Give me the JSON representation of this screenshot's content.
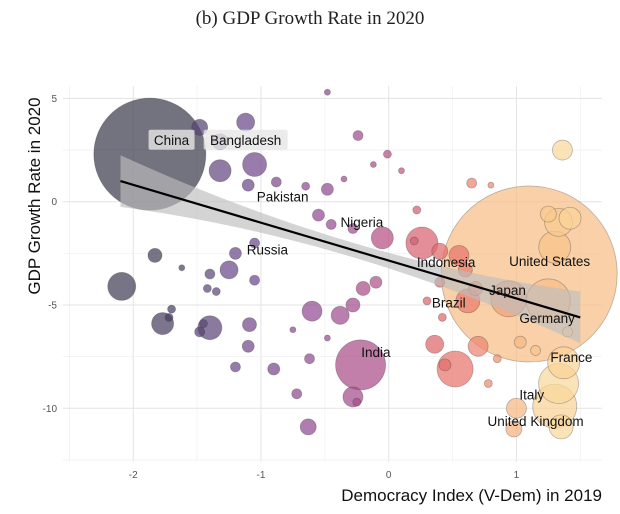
{
  "chart_data": {
    "type": "scatter",
    "title": "(b) GDP Growth Rate in 2020",
    "xlabel": "Democracy Index (V-Dem) in 2019",
    "ylabel": "GDP Growth Rate in 2020",
    "xlim": [
      -2.55,
      1.67
    ],
    "ylim": [
      -12.6,
      5.6
    ],
    "x_ticks": [
      -2,
      -1,
      0,
      1
    ],
    "y_ticks": [
      5,
      0,
      -5,
      -10
    ],
    "grid": true,
    "bubble_color_scale": [
      "#3d3c4e",
      "#6b4a8a",
      "#9b4b92",
      "#c2547a",
      "#e46a6a",
      "#f29e74",
      "#f8c98c",
      "#fbeab0"
    ],
    "regression_line": {
      "x": [
        -2.1,
        1.5
      ],
      "y": [
        1.0,
        -5.6
      ],
      "color": "#000000",
      "band_color": "#bdbdbd"
    },
    "labels": [
      {
        "text": "China",
        "x": -1.7,
        "y": 2.95,
        "boxed": true
      },
      {
        "text": "Bangladesh",
        "x": -1.12,
        "y": 2.95,
        "boxed": true
      },
      {
        "text": "Pakistan",
        "x": -0.83,
        "y": 0.22,
        "boxed": false
      },
      {
        "text": "Nigeria",
        "x": -0.21,
        "y": -1.0,
        "boxed": false
      },
      {
        "text": "Russia",
        "x": -0.95,
        "y": -2.35,
        "boxed": false
      },
      {
        "text": "Indonesia",
        "x": 0.45,
        "y": -2.95,
        "boxed": false
      },
      {
        "text": "United States",
        "x": 1.26,
        "y": -2.9,
        "boxed": false
      },
      {
        "text": "Japan",
        "x": 0.93,
        "y": -4.3,
        "boxed": false
      },
      {
        "text": "Brazil",
        "x": 0.47,
        "y": -4.9,
        "boxed": false
      },
      {
        "text": "Germany",
        "x": 1.24,
        "y": -5.65,
        "boxed": false
      },
      {
        "text": "India",
        "x": -0.1,
        "y": -7.3,
        "boxed": false
      },
      {
        "text": "France",
        "x": 1.43,
        "y": -7.55,
        "boxed": false
      },
      {
        "text": "Italy",
        "x": 1.12,
        "y": -9.35,
        "boxed": false
      },
      {
        "text": "United Kingdom",
        "x": 1.15,
        "y": -10.65,
        "boxed": false
      }
    ],
    "bubbles": [
      {
        "x": -1.87,
        "y": 2.3,
        "r": 56,
        "c": 0.0
      },
      {
        "x": -1.48,
        "y": 3.6,
        "r": 8,
        "c": 0.08
      },
      {
        "x": -1.12,
        "y": 3.85,
        "r": 9,
        "c": 0.14
      },
      {
        "x": -1.32,
        "y": 2.9,
        "r": 8,
        "c": 0.12
      },
      {
        "x": -1.05,
        "y": 1.8,
        "r": 12,
        "c": 0.16
      },
      {
        "x": -1.32,
        "y": 1.5,
        "r": 11,
        "c": 0.12
      },
      {
        "x": -1.1,
        "y": 0.8,
        "r": 6,
        "c": 0.14
      },
      {
        "x": -0.88,
        "y": 0.95,
        "r": 5,
        "c": 0.2
      },
      {
        "x": -0.65,
        "y": 0.75,
        "r": 4,
        "c": 0.24
      },
      {
        "x": -0.48,
        "y": 0.6,
        "r": 6,
        "c": 0.26
      },
      {
        "x": -0.55,
        "y": -0.65,
        "r": 6,
        "c": 0.26
      },
      {
        "x": -0.45,
        "y": -1.1,
        "r": 5,
        "c": 0.28
      },
      {
        "x": -0.28,
        "y": -1.3,
        "r": 5,
        "c": 0.3
      },
      {
        "x": -0.24,
        "y": 3.2,
        "r": 5,
        "c": 0.3
      },
      {
        "x": -0.05,
        "y": -1.75,
        "r": 11,
        "c": 0.38
      },
      {
        "x": -0.12,
        "y": 1.8,
        "r": 3,
        "c": 0.34
      },
      {
        "x": -0.01,
        "y": 2.3,
        "r": 4,
        "c": 0.38
      },
      {
        "x": -0.35,
        "y": 1.1,
        "r": 3,
        "c": 0.3
      },
      {
        "x": -0.48,
        "y": 5.3,
        "r": 3,
        "c": 0.26
      },
      {
        "x": 0.22,
        "y": -0.4,
        "r": 4,
        "c": 0.5
      },
      {
        "x": 0.1,
        "y": 1.5,
        "r": 3,
        "c": 0.45
      },
      {
        "x": -1.05,
        "y": -2.0,
        "r": 5,
        "c": 0.14
      },
      {
        "x": -1.2,
        "y": -2.5,
        "r": 6,
        "c": 0.14
      },
      {
        "x": -1.25,
        "y": -3.3,
        "r": 9,
        "c": 0.14
      },
      {
        "x": -1.4,
        "y": -3.5,
        "r": 5,
        "c": 0.1
      },
      {
        "x": -1.42,
        "y": -4.2,
        "r": 4,
        "c": 0.1
      },
      {
        "x": -1.35,
        "y": -4.35,
        "r": 4,
        "c": 0.1
      },
      {
        "x": -1.05,
        "y": -3.8,
        "r": 5,
        "c": 0.14
      },
      {
        "x": -1.62,
        "y": -3.2,
        "r": 3,
        "c": 0.06
      },
      {
        "x": -2.09,
        "y": -4.1,
        "r": 14,
        "c": 0.02
      },
      {
        "x": -1.83,
        "y": -2.6,
        "r": 7,
        "c": 0.02
      },
      {
        "x": -1.77,
        "y": -5.9,
        "r": 11,
        "c": 0.04
      },
      {
        "x": -1.7,
        "y": -5.2,
        "r": 4,
        "c": 0.04
      },
      {
        "x": -1.72,
        "y": -5.6,
        "r": 4,
        "c": 0.04
      },
      {
        "x": -1.48,
        "y": -6.3,
        "r": 5,
        "c": 0.08
      },
      {
        "x": -1.4,
        "y": -6.1,
        "r": 12,
        "c": 0.1
      },
      {
        "x": -1.45,
        "y": -5.9,
        "r": 4,
        "c": 0.1
      },
      {
        "x": -1.09,
        "y": -5.95,
        "r": 7,
        "c": 0.16
      },
      {
        "x": -1.1,
        "y": -7.0,
        "r": 6,
        "c": 0.16
      },
      {
        "x": -1.2,
        "y": -8.0,
        "r": 5,
        "c": 0.14
      },
      {
        "x": -0.9,
        "y": -8.1,
        "r": 6,
        "c": 0.18
      },
      {
        "x": -0.6,
        "y": -5.3,
        "r": 10,
        "c": 0.26
      },
      {
        "x": -0.38,
        "y": -5.5,
        "r": 9,
        "c": 0.3
      },
      {
        "x": -0.28,
        "y": -5.0,
        "r": 7,
        "c": 0.32
      },
      {
        "x": -0.2,
        "y": -4.2,
        "r": 7,
        "c": 0.34
      },
      {
        "x": -0.1,
        "y": -3.9,
        "r": 6,
        "c": 0.36
      },
      {
        "x": -0.22,
        "y": -7.9,
        "r": 25,
        "c": 0.34
      },
      {
        "x": -0.62,
        "y": -7.6,
        "r": 5,
        "c": 0.26
      },
      {
        "x": -0.72,
        "y": -9.3,
        "r": 5,
        "c": 0.24
      },
      {
        "x": -0.28,
        "y": -9.45,
        "r": 10,
        "c": 0.32
      },
      {
        "x": -0.25,
        "y": -9.7,
        "r": 4,
        "c": 0.32
      },
      {
        "x": -0.63,
        "y": -10.9,
        "r": 8,
        "c": 0.26
      },
      {
        "x": -0.75,
        "y": -6.2,
        "r": 3,
        "c": 0.24
      },
      {
        "x": -0.48,
        "y": -6.6,
        "r": 3,
        "c": 0.28
      },
      {
        "x": 0.26,
        "y": -2.0,
        "r": 16,
        "c": 0.52
      },
      {
        "x": 0.2,
        "y": -1.9,
        "r": 4,
        "c": 0.5
      },
      {
        "x": 0.4,
        "y": -2.4,
        "r": 8,
        "c": 0.56
      },
      {
        "x": 0.55,
        "y": -2.6,
        "r": 10,
        "c": 0.6
      },
      {
        "x": 0.6,
        "y": -3.3,
        "r": 7,
        "c": 0.62
      },
      {
        "x": 0.62,
        "y": -4.8,
        "r": 12,
        "c": 0.62
      },
      {
        "x": 0.4,
        "y": -3.9,
        "r": 5,
        "c": 0.56
      },
      {
        "x": 0.3,
        "y": -4.8,
        "r": 4,
        "c": 0.54
      },
      {
        "x": 0.42,
        "y": -5.6,
        "r": 4,
        "c": 0.56
      },
      {
        "x": 0.36,
        "y": -6.9,
        "r": 9,
        "c": 0.55
      },
      {
        "x": 0.52,
        "y": -8.1,
        "r": 18,
        "c": 0.6
      },
      {
        "x": 0.44,
        "y": -7.9,
        "r": 6,
        "c": 0.58
      },
      {
        "x": 0.7,
        "y": -7.0,
        "r": 10,
        "c": 0.64
      },
      {
        "x": 0.68,
        "y": -4.2,
        "r": 7,
        "c": 0.64
      },
      {
        "x": 0.85,
        "y": -7.6,
        "r": 4,
        "c": 0.68
      },
      {
        "x": 0.78,
        "y": -8.8,
        "r": 4,
        "c": 0.66
      },
      {
        "x": 0.65,
        "y": 0.9,
        "r": 5,
        "c": 0.64
      },
      {
        "x": 0.8,
        "y": 0.8,
        "r": 3,
        "c": 0.66
      },
      {
        "x": 1.1,
        "y": -3.5,
        "r": 88,
        "c": 0.82
      },
      {
        "x": 0.94,
        "y": -4.7,
        "r": 18,
        "c": 0.72
      },
      {
        "x": 1.25,
        "y": -4.8,
        "r": 22,
        "c": 0.82
      },
      {
        "x": 1.3,
        "y": -2.2,
        "r": 16,
        "c": 0.84
      },
      {
        "x": 1.33,
        "y": -1.0,
        "r": 14,
        "c": 0.86
      },
      {
        "x": 1.42,
        "y": -0.8,
        "r": 11,
        "c": 0.9
      },
      {
        "x": 1.36,
        "y": 2.5,
        "r": 10,
        "c": 0.92
      },
      {
        "x": 1.25,
        "y": -0.6,
        "r": 8,
        "c": 0.86
      },
      {
        "x": 1.37,
        "y": -7.8,
        "r": 16,
        "c": 0.9
      },
      {
        "x": 1.33,
        "y": -8.8,
        "r": 20,
        "c": 0.92
      },
      {
        "x": 1.3,
        "y": -9.9,
        "r": 22,
        "c": 0.9
      },
      {
        "x": 1.35,
        "y": -10.9,
        "r": 12,
        "c": 0.92
      },
      {
        "x": 1.0,
        "y": -10.0,
        "r": 10,
        "c": 0.8
      },
      {
        "x": 0.98,
        "y": -11.0,
        "r": 8,
        "c": 0.78
      },
      {
        "x": 1.03,
        "y": -6.8,
        "r": 6,
        "c": 0.8
      },
      {
        "x": 1.15,
        "y": -7.2,
        "r": 5,
        "c": 0.84
      },
      {
        "x": 1.4,
        "y": -6.3,
        "r": 5,
        "c": 0.92
      }
    ]
  }
}
